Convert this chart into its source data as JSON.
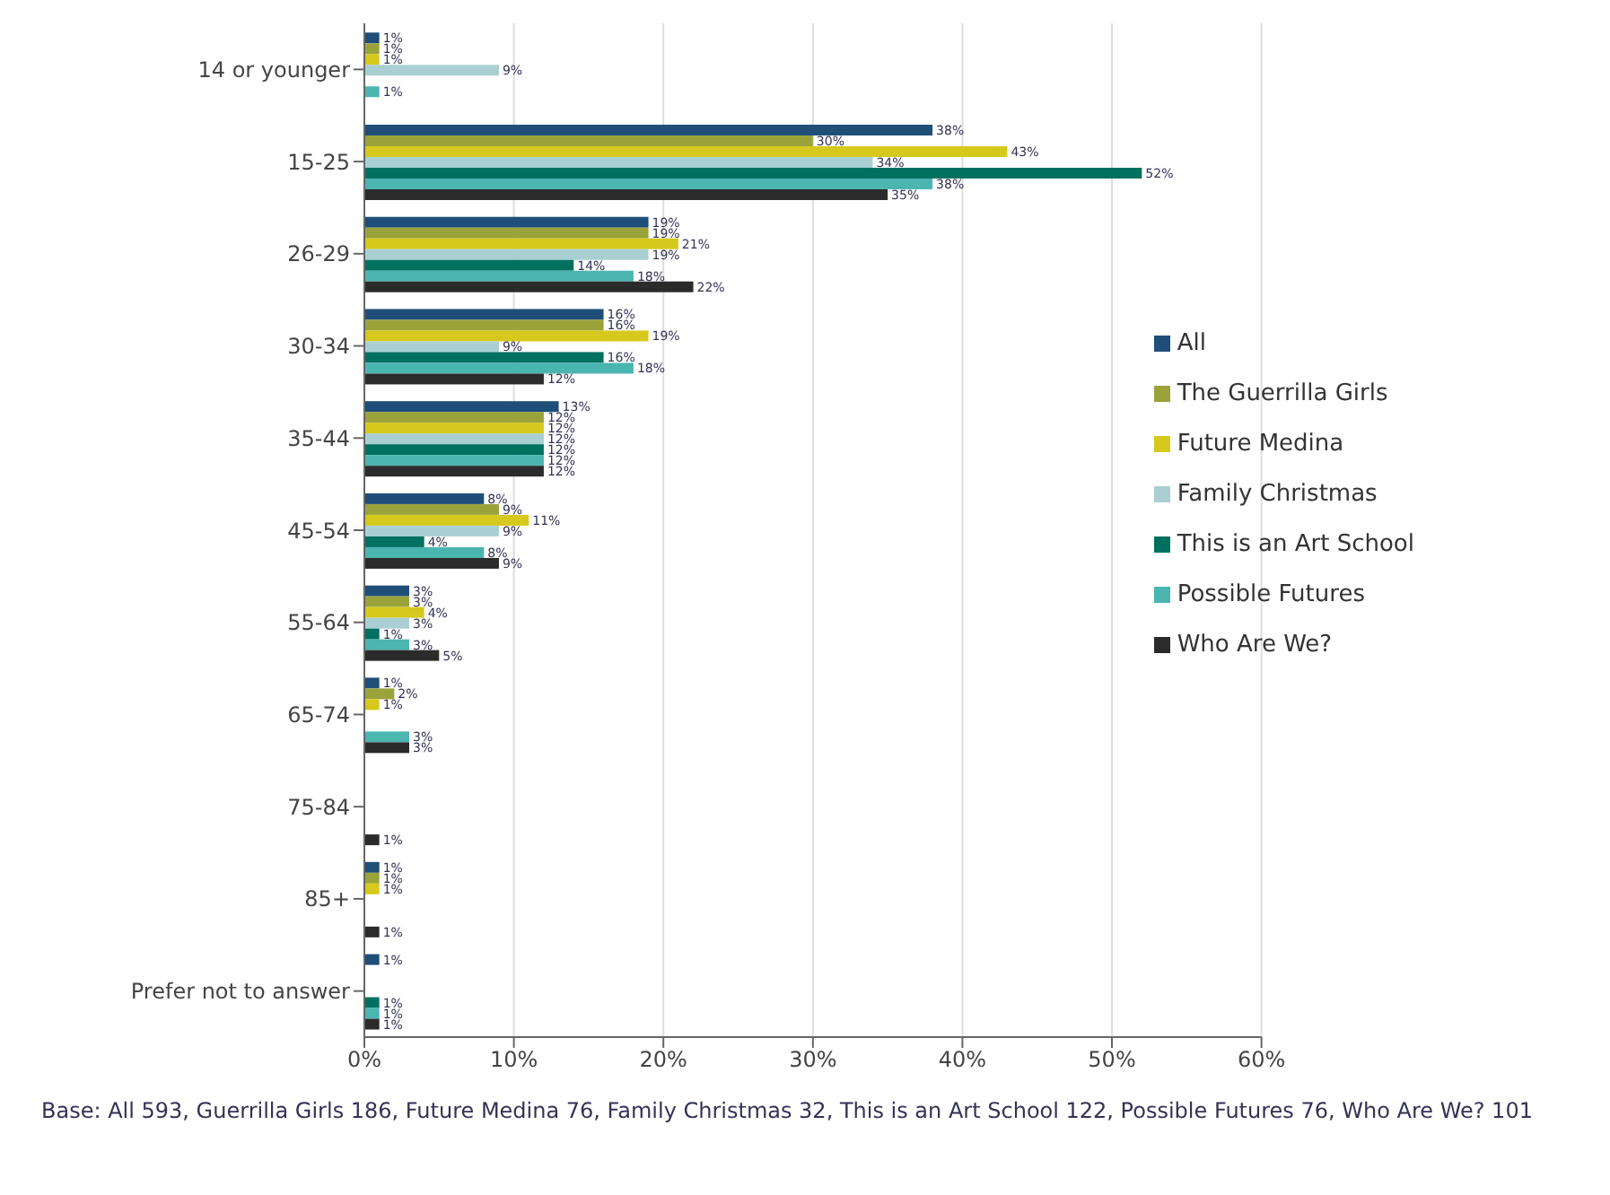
{
  "chart_data": {
    "type": "bar",
    "orientation": "horizontal",
    "categories": [
      "14 or younger",
      "15-25",
      "26-29",
      "30-34",
      "35-44",
      "45-54",
      "55-64",
      "65-74",
      "75-84",
      "85+",
      "Prefer not to answer"
    ],
    "series": [
      {
        "name": "All",
        "color": "#1f4e79",
        "values": [
          1,
          38,
          19,
          16,
          13,
          8,
          3,
          1,
          null,
          1,
          1
        ],
        "value_labels": [
          "1%",
          "38%",
          "19%",
          "16%",
          "13%",
          "8%",
          "3%",
          "1%",
          null,
          "1%",
          "1%"
        ]
      },
      {
        "name": "The Guerrilla Girls",
        "color": "#9aa33a",
        "values": [
          1,
          30,
          19,
          16,
          12,
          9,
          3,
          2,
          null,
          1,
          null
        ],
        "value_labels": [
          "1%",
          "30%",
          "19%",
          "16%",
          "12%",
          "9%",
          "3%",
          "2%",
          null,
          "1%",
          null
        ]
      },
      {
        "name": "Future Medina",
        "color": "#d6c81c",
        "values": [
          1,
          43,
          21,
          19,
          12,
          11,
          4,
          1,
          null,
          1,
          null
        ],
        "value_labels": [
          "1%",
          "43%",
          "21%",
          "19%",
          "12%",
          "11%",
          "4%",
          "1%",
          null,
          "1%",
          null
        ]
      },
      {
        "name": "Family Christmas",
        "color": "#a9cfd3",
        "values": [
          9,
          34,
          19,
          9,
          12,
          9,
          3,
          null,
          null,
          null,
          null
        ],
        "value_labels": [
          "9%",
          "34%",
          "19%",
          "9%",
          "12%",
          "9%",
          "3%",
          null,
          null,
          null,
          null
        ]
      },
      {
        "name": "This is an Art School",
        "color": "#00705f",
        "values": [
          null,
          52,
          14,
          16,
          12,
          4,
          1,
          null,
          null,
          null,
          1
        ],
        "value_labels": [
          null,
          "52%",
          "14%",
          "16%",
          "12%",
          "4%",
          "1%",
          null,
          null,
          null,
          "1%"
        ]
      },
      {
        "name": "Possible Futures",
        "color": "#4bb5b0",
        "values": [
          1,
          38,
          18,
          18,
          12,
          8,
          3,
          3,
          null,
          null,
          1
        ],
        "value_labels": [
          "1%",
          "38%",
          "18%",
          "18%",
          "12%",
          "8%",
          "3%",
          "3%",
          null,
          null,
          "1%"
        ]
      },
      {
        "name": "Who Are We?",
        "color": "#2b2b2b",
        "values": [
          null,
          35,
          22,
          12,
          12,
          9,
          5,
          3,
          1,
          1,
          1
        ],
        "value_labels": [
          null,
          "35%",
          "22%",
          "12%",
          "12%",
          "9%",
          "5%",
          "3%",
          "1%",
          "1%",
          "1%"
        ]
      }
    ],
    "xlim": [
      0,
      60
    ],
    "xticks": [
      {
        "value": 0,
        "label": "0%"
      },
      {
        "value": 10,
        "label": "10%"
      },
      {
        "value": 20,
        "label": "20%"
      },
      {
        "value": 30,
        "label": "30%"
      },
      {
        "value": 40,
        "label": "40%"
      },
      {
        "value": 50,
        "label": "50%"
      },
      {
        "value": 60,
        "label": "60%"
      }
    ],
    "grid": "x",
    "legend": "right",
    "annotations": [
      "Base: All 593, Guerrilla Girls 186, Future Medina 76, Family Christmas 32, This is an Art School 122, Possible Futures 76, Who Are We? 101"
    ]
  }
}
